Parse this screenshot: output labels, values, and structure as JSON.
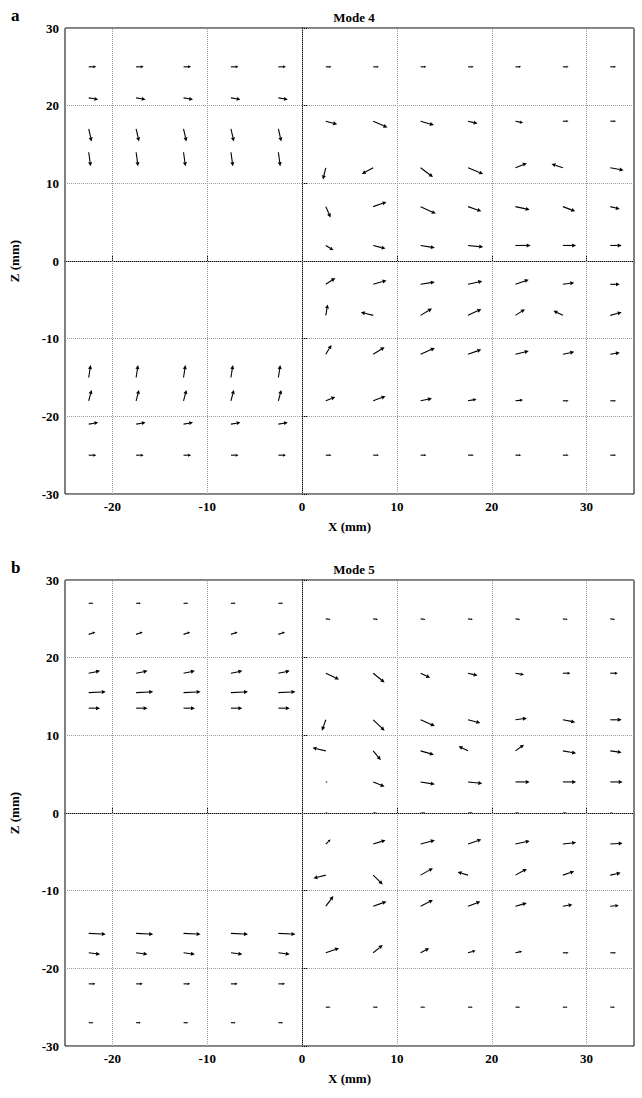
{
  "chart_data": [
    {
      "type": "quiver",
      "panel": "a",
      "title": "Mode 4",
      "xlabel": "X (mm)",
      "ylabel": "Z (mm)",
      "xlim": [
        -25,
        35
      ],
      "ylim": [
        -30,
        30
      ],
      "xticks": [
        -20,
        -10,
        0,
        10,
        20,
        30
      ],
      "yticks": [
        -30,
        -20,
        -10,
        0,
        10,
        20,
        30
      ],
      "grid": true,
      "color": "#000000",
      "vectors": [
        [
          -22.5,
          25,
          0.8,
          0
        ],
        [
          -17.5,
          25,
          0.8,
          0
        ],
        [
          -12.5,
          25,
          0.8,
          0
        ],
        [
          -7.5,
          25,
          0.8,
          0
        ],
        [
          -2.5,
          25,
          0.8,
          0
        ],
        [
          -22.5,
          21,
          1.0,
          -0.2
        ],
        [
          -17.5,
          21,
          1.0,
          -0.2
        ],
        [
          -12.5,
          21,
          1.0,
          -0.2
        ],
        [
          -7.5,
          21,
          1.0,
          -0.2
        ],
        [
          -2.5,
          21,
          1.0,
          -0.2
        ],
        [
          -22.5,
          17,
          0.3,
          -1.6
        ],
        [
          -17.5,
          17,
          0.3,
          -1.6
        ],
        [
          -12.5,
          17,
          0.3,
          -1.6
        ],
        [
          -7.5,
          17,
          0.3,
          -1.6
        ],
        [
          -2.5,
          17,
          0.3,
          -1.6
        ],
        [
          -22.5,
          14,
          0.2,
          -1.8
        ],
        [
          -17.5,
          14,
          0.2,
          -1.8
        ],
        [
          -12.5,
          14,
          0.2,
          -1.8
        ],
        [
          -7.5,
          14,
          0.2,
          -1.8
        ],
        [
          -2.5,
          14,
          0.2,
          -1.8
        ],
        [
          -22.5,
          -15,
          0.2,
          1.6
        ],
        [
          -17.5,
          -15,
          0.2,
          1.6
        ],
        [
          -12.5,
          -15,
          0.2,
          1.6
        ],
        [
          -7.5,
          -15,
          0.2,
          1.6
        ],
        [
          -2.5,
          -15,
          0.2,
          1.6
        ],
        [
          -22.5,
          -18,
          0.3,
          1.4
        ],
        [
          -17.5,
          -18,
          0.3,
          1.4
        ],
        [
          -12.5,
          -18,
          0.3,
          1.4
        ],
        [
          -7.5,
          -18,
          0.3,
          1.4
        ],
        [
          -2.5,
          -18,
          0.3,
          1.4
        ],
        [
          -22.5,
          -21,
          1.0,
          0.2
        ],
        [
          -17.5,
          -21,
          1.0,
          0.2
        ],
        [
          -12.5,
          -21,
          1.0,
          0.2
        ],
        [
          -7.5,
          -21,
          1.0,
          0.2
        ],
        [
          -2.5,
          -21,
          1.0,
          0.2
        ],
        [
          -22.5,
          -25,
          0.8,
          0
        ],
        [
          -17.5,
          -25,
          0.8,
          0
        ],
        [
          -12.5,
          -25,
          0.8,
          0
        ],
        [
          -7.5,
          -25,
          0.8,
          0
        ],
        [
          -2.5,
          -25,
          0.8,
          0
        ],
        [
          2.5,
          25,
          0.6,
          0
        ],
        [
          7.5,
          25,
          0.6,
          0
        ],
        [
          12.5,
          25,
          0.6,
          0
        ],
        [
          17.5,
          25,
          0.6,
          0
        ],
        [
          22.5,
          25,
          0.6,
          0
        ],
        [
          27.5,
          25,
          0.6,
          0
        ],
        [
          32.5,
          25,
          0.6,
          0
        ],
        [
          2.5,
          18,
          1.2,
          -0.4
        ],
        [
          7.5,
          18,
          1.5,
          -0.8
        ],
        [
          12.5,
          18,
          1.4,
          -0.5
        ],
        [
          17.5,
          18,
          1.0,
          -0.3
        ],
        [
          22.5,
          18,
          0.8,
          -0.2
        ],
        [
          27.5,
          18,
          0.6,
          0
        ],
        [
          32.5,
          18,
          0.6,
          0
        ],
        [
          2.5,
          12,
          -0.3,
          -1.5
        ],
        [
          7.5,
          12,
          -1.2,
          -0.8
        ],
        [
          12.5,
          12,
          1.3,
          -1.2
        ],
        [
          17.5,
          12,
          1.6,
          -0.8
        ],
        [
          22.5,
          12,
          1.2,
          0.6
        ],
        [
          27.5,
          12,
          -1.2,
          0.5
        ],
        [
          32.5,
          12,
          1.4,
          -0.3
        ],
        [
          2.5,
          7,
          0.5,
          -1.4
        ],
        [
          7.5,
          7,
          1.4,
          0.6
        ],
        [
          12.5,
          7,
          1.6,
          -0.9
        ],
        [
          17.5,
          7,
          1.4,
          -0.6
        ],
        [
          22.5,
          7,
          1.5,
          -0.4
        ],
        [
          27.5,
          7,
          1.3,
          -0.6
        ],
        [
          32.5,
          7,
          1.0,
          -0.3
        ],
        [
          2.5,
          2,
          0.8,
          -0.6
        ],
        [
          7.5,
          2,
          1.3,
          -0.4
        ],
        [
          12.5,
          2,
          1.5,
          -0.3
        ],
        [
          17.5,
          2,
          1.6,
          -0.2
        ],
        [
          22.5,
          2,
          1.6,
          0
        ],
        [
          27.5,
          2,
          1.4,
          0
        ],
        [
          32.5,
          2,
          1.2,
          0
        ],
        [
          2.5,
          -3,
          1.0,
          0.8
        ],
        [
          7.5,
          -3,
          1.4,
          0.5
        ],
        [
          12.5,
          -3,
          1.5,
          0.3
        ],
        [
          17.5,
          -3,
          1.5,
          0.4
        ],
        [
          22.5,
          -3,
          1.4,
          0.6
        ],
        [
          27.5,
          -3,
          1.2,
          0.2
        ],
        [
          32.5,
          -3,
          1.0,
          0
        ],
        [
          2.5,
          -7,
          0.2,
          1.4
        ],
        [
          7.5,
          -7,
          -1.3,
          0.4
        ],
        [
          12.5,
          -7,
          1.2,
          0.9
        ],
        [
          17.5,
          -7,
          1.4,
          0.8
        ],
        [
          22.5,
          -7,
          1.0,
          0.8
        ],
        [
          27.5,
          -7,
          -1.0,
          0.6
        ],
        [
          32.5,
          -7,
          1.2,
          0.4
        ],
        [
          2.5,
          -12,
          0.6,
          1.2
        ],
        [
          7.5,
          -12,
          1.2,
          0.9
        ],
        [
          12.5,
          -12,
          1.5,
          0.8
        ],
        [
          17.5,
          -12,
          1.4,
          0.6
        ],
        [
          22.5,
          -12,
          1.4,
          0.4
        ],
        [
          27.5,
          -12,
          1.2,
          0.3
        ],
        [
          32.5,
          -12,
          1.0,
          0.2
        ],
        [
          2.5,
          -18,
          1.0,
          0.5
        ],
        [
          7.5,
          -18,
          1.3,
          0.6
        ],
        [
          12.5,
          -18,
          1.2,
          0.3
        ],
        [
          17.5,
          -18,
          0.9,
          0.2
        ],
        [
          22.5,
          -18,
          0.8,
          0.1
        ],
        [
          27.5,
          -18,
          0.6,
          0
        ],
        [
          32.5,
          -18,
          0.6,
          0
        ],
        [
          2.5,
          -25,
          0.6,
          0
        ],
        [
          7.5,
          -25,
          0.6,
          0
        ],
        [
          12.5,
          -25,
          0.6,
          0
        ],
        [
          17.5,
          -25,
          0.6,
          0
        ],
        [
          22.5,
          -25,
          0.6,
          0
        ],
        [
          27.5,
          -25,
          0.6,
          0
        ],
        [
          32.5,
          -25,
          0.6,
          0
        ]
      ]
    },
    {
      "type": "quiver",
      "panel": "b",
      "title": "Mode 5",
      "xlabel": "X (mm)",
      "ylabel": "Z (mm)",
      "xlim": [
        -25,
        35
      ],
      "ylim": [
        -30,
        30
      ],
      "xticks": [
        -20,
        -10,
        0,
        10,
        20,
        30
      ],
      "yticks": [
        -30,
        -20,
        -10,
        0,
        10,
        20,
        30
      ],
      "grid": true,
      "color": "#000000",
      "vectors": [
        [
          -22.5,
          27,
          0.5,
          0
        ],
        [
          -17.5,
          27,
          0.5,
          0
        ],
        [
          -12.5,
          27,
          0.5,
          0
        ],
        [
          -7.5,
          27,
          0.5,
          0
        ],
        [
          -2.5,
          27,
          0.5,
          0
        ],
        [
          -22.5,
          23,
          0.7,
          0.3
        ],
        [
          -17.5,
          23,
          0.7,
          0.3
        ],
        [
          -12.5,
          23,
          0.7,
          0.3
        ],
        [
          -7.5,
          23,
          0.7,
          0.3
        ],
        [
          -2.5,
          23,
          0.7,
          0.3
        ],
        [
          -22.5,
          18,
          1.2,
          0.3
        ],
        [
          -17.5,
          18,
          1.2,
          0.3
        ],
        [
          -12.5,
          18,
          1.2,
          0.3
        ],
        [
          -7.5,
          18,
          1.2,
          0.3
        ],
        [
          -2.5,
          18,
          1.2,
          0.3
        ],
        [
          -22.5,
          15.5,
          1.8,
          0.1
        ],
        [
          -17.5,
          15.5,
          1.8,
          0.1
        ],
        [
          -12.5,
          15.5,
          1.8,
          0.1
        ],
        [
          -7.5,
          15.5,
          1.8,
          0.1
        ],
        [
          -2.5,
          15.5,
          1.8,
          0.1
        ],
        [
          -22.5,
          13.5,
          1.2,
          0
        ],
        [
          -17.5,
          13.5,
          1.2,
          0
        ],
        [
          -12.5,
          13.5,
          1.2,
          0
        ],
        [
          -7.5,
          13.5,
          1.2,
          0
        ],
        [
          -2.5,
          13.5,
          1.2,
          0
        ],
        [
          -22.5,
          -15.5,
          1.8,
          -0.1
        ],
        [
          -17.5,
          -15.5,
          1.8,
          -0.1
        ],
        [
          -12.5,
          -15.5,
          1.8,
          -0.1
        ],
        [
          -7.5,
          -15.5,
          1.8,
          -0.1
        ],
        [
          -2.5,
          -15.5,
          1.8,
          -0.1
        ],
        [
          -22.5,
          -18,
          1.2,
          -0.2
        ],
        [
          -17.5,
          -18,
          1.2,
          -0.2
        ],
        [
          -12.5,
          -18,
          1.2,
          -0.2
        ],
        [
          -7.5,
          -18,
          1.2,
          -0.2
        ],
        [
          -2.5,
          -18,
          1.2,
          -0.2
        ],
        [
          -22.5,
          -22,
          0.7,
          0
        ],
        [
          -17.5,
          -22,
          0.7,
          0
        ],
        [
          -12.5,
          -22,
          0.7,
          0
        ],
        [
          -7.5,
          -22,
          0.7,
          0
        ],
        [
          -2.5,
          -22,
          0.7,
          0
        ],
        [
          -22.5,
          -27,
          0.5,
          0
        ],
        [
          -17.5,
          -27,
          0.5,
          0
        ],
        [
          -12.5,
          -27,
          0.5,
          0
        ],
        [
          -7.5,
          -27,
          0.5,
          0
        ],
        [
          -2.5,
          -27,
          0.5,
          0
        ],
        [
          2.5,
          25,
          0.5,
          -0.1
        ],
        [
          7.5,
          25,
          0.5,
          -0.1
        ],
        [
          12.5,
          25,
          0.5,
          -0.1
        ],
        [
          17.5,
          25,
          0.5,
          -0.1
        ],
        [
          22.5,
          25,
          0.5,
          -0.1
        ],
        [
          27.5,
          25,
          0.5,
          -0.1
        ],
        [
          32.5,
          25,
          0.5,
          -0.1
        ],
        [
          2.5,
          18,
          1.4,
          -0.8
        ],
        [
          7.5,
          18,
          1.2,
          -1.2
        ],
        [
          12.5,
          18,
          1.0,
          -0.6
        ],
        [
          17.5,
          18,
          1.0,
          -0.3
        ],
        [
          22.5,
          18,
          0.9,
          -0.2
        ],
        [
          27.5,
          18,
          0.8,
          0
        ],
        [
          32.5,
          18,
          0.8,
          0
        ],
        [
          2.5,
          12,
          -0.4,
          -1.4
        ],
        [
          7.5,
          12,
          1.2,
          -1.4
        ],
        [
          12.5,
          12,
          1.5,
          -0.8
        ],
        [
          17.5,
          12,
          1.3,
          -0.4
        ],
        [
          22.5,
          12,
          1.2,
          0.2
        ],
        [
          27.5,
          12,
          1.3,
          -0.3
        ],
        [
          32.5,
          12,
          1.2,
          0
        ],
        [
          2.5,
          8,
          -1.4,
          0.4
        ],
        [
          7.5,
          8,
          0.8,
          -1.2
        ],
        [
          12.5,
          8,
          1.4,
          -0.5
        ],
        [
          17.5,
          8,
          -1.0,
          0.6
        ],
        [
          22.5,
          8,
          0.9,
          0.8
        ],
        [
          27.5,
          8,
          1.4,
          -0.3
        ],
        [
          32.5,
          8,
          1.2,
          -0.2
        ],
        [
          2.5,
          4,
          0.2,
          0
        ],
        [
          7.5,
          4,
          1.2,
          -0.6
        ],
        [
          12.5,
          4,
          1.5,
          -0.3
        ],
        [
          17.5,
          4,
          1.5,
          -0.2
        ],
        [
          22.5,
          4,
          1.5,
          0
        ],
        [
          27.5,
          4,
          1.4,
          0
        ],
        [
          32.5,
          4,
          1.3,
          0
        ],
        [
          2.5,
          0,
          0.2,
          0
        ],
        [
          7.5,
          0,
          0.4,
          0
        ],
        [
          12.5,
          0,
          0.5,
          0
        ],
        [
          17.5,
          0,
          0.5,
          0
        ],
        [
          22.5,
          0,
          0.4,
          0
        ],
        [
          27.5,
          0,
          0.4,
          0
        ],
        [
          32.5,
          0,
          0.3,
          0
        ],
        [
          2.5,
          -4,
          0.5,
          0.6
        ],
        [
          7.5,
          -4,
          1.3,
          0.5
        ],
        [
          12.5,
          -4,
          1.5,
          0.5
        ],
        [
          17.5,
          -4,
          1.4,
          0.6
        ],
        [
          22.5,
          -4,
          1.5,
          0.4
        ],
        [
          27.5,
          -4,
          1.4,
          0.2
        ],
        [
          32.5,
          -4,
          1.3,
          0.1
        ],
        [
          2.5,
          -8,
          -1.3,
          -0.4
        ],
        [
          7.5,
          -8,
          1.0,
          -1.2
        ],
        [
          12.5,
          -8,
          1.3,
          0.9
        ],
        [
          17.5,
          -8,
          -1.1,
          0.4
        ],
        [
          22.5,
          -8,
          1.2,
          0.8
        ],
        [
          27.5,
          -8,
          1.2,
          0.5
        ],
        [
          32.5,
          -8,
          1.1,
          0.3
        ],
        [
          2.5,
          -12,
          0.8,
          1.3
        ],
        [
          7.5,
          -12,
          1.4,
          0.6
        ],
        [
          12.5,
          -12,
          1.3,
          0.8
        ],
        [
          17.5,
          -12,
          1.3,
          0.6
        ],
        [
          22.5,
          -12,
          1.2,
          0.4
        ],
        [
          27.5,
          -12,
          1.0,
          0.2
        ],
        [
          32.5,
          -12,
          0.9,
          0.1
        ],
        [
          2.5,
          -18,
          1.4,
          0.6
        ],
        [
          7.5,
          -18,
          1.0,
          1.0
        ],
        [
          12.5,
          -18,
          0.9,
          0.6
        ],
        [
          17.5,
          -18,
          0.8,
          0.3
        ],
        [
          22.5,
          -18,
          0.7,
          0.2
        ],
        [
          27.5,
          -18,
          0.6,
          0
        ],
        [
          32.5,
          -18,
          0.6,
          0
        ],
        [
          2.5,
          -25,
          0.5,
          0
        ],
        [
          7.5,
          -25,
          0.5,
          0
        ],
        [
          12.5,
          -25,
          0.5,
          0
        ],
        [
          17.5,
          -25,
          0.5,
          0
        ],
        [
          22.5,
          -25,
          0.5,
          0
        ],
        [
          27.5,
          -25,
          0.5,
          0
        ],
        [
          32.5,
          -25,
          0.5,
          0
        ]
      ]
    }
  ]
}
